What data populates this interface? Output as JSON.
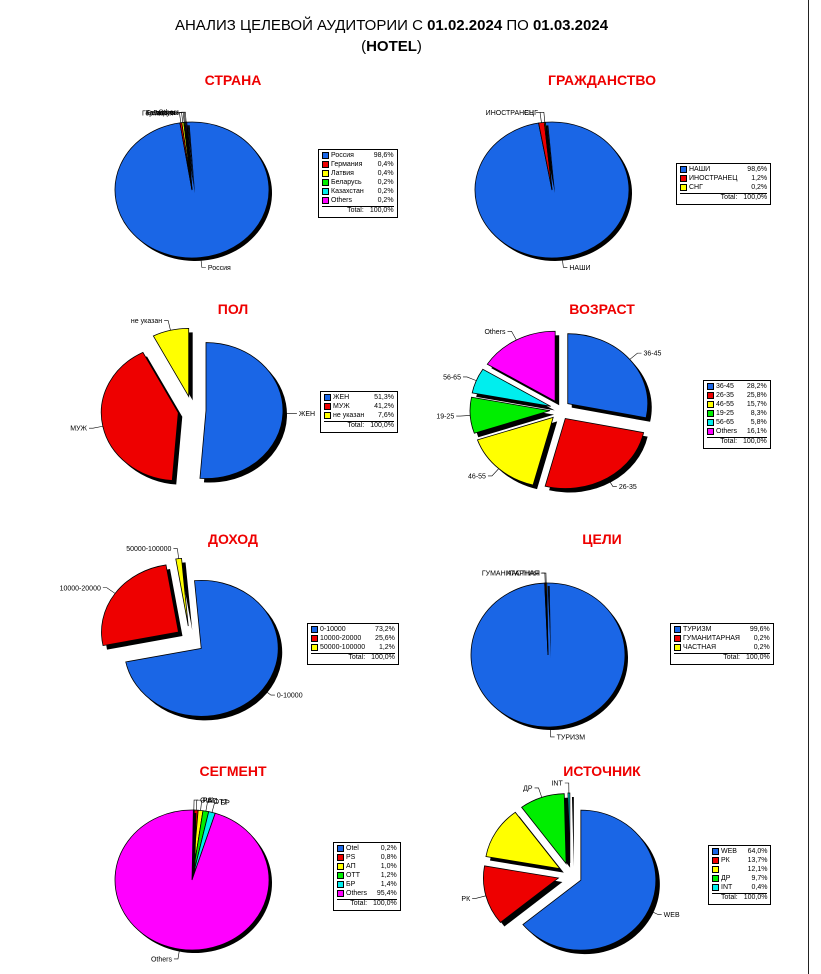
{
  "header": {
    "line1_prefix": "АНАЛИЗ ЦЕЛЕВОЙ АУДИТОРИИ С ",
    "date_from": "01.02.2024",
    "line1_mid": " ПО ",
    "date_to": "01.03.2024",
    "line2_open": "(",
    "line2_bold": "HOTEL",
    "line2_close": ")"
  },
  "total_label": "Total:",
  "chart_data": [
    {
      "type": "pie",
      "title": "СТРАНА",
      "labels": [
        "Россия",
        "Германия",
        "Латвия",
        "Беларусь",
        "Казахстан",
        "Others"
      ],
      "values": [
        98.6,
        0.4,
        0.4,
        0.2,
        0.2,
        0.2
      ],
      "value_text": [
        "98,6%",
        "0,4%",
        "0,4%",
        "0,2%",
        "0,2%",
        "0,2%"
      ],
      "colors": [
        "#1a66e6",
        "#ee0000",
        "#ffff00",
        "#00ee00",
        "#00eeee",
        "#ff00ff"
      ],
      "exploded": [
        false,
        false,
        false,
        false,
        false,
        false
      ],
      "total": "100,0%",
      "slice_labels": [
        "Россия",
        "Германия",
        "Латвия",
        "Беларусь",
        "Казахстан",
        "Others"
      ]
    },
    {
      "type": "pie",
      "title": "ГРАЖДАНСТВО",
      "labels": [
        "НАШИ",
        "ИНОСТРАНЕЦ",
        "СНГ"
      ],
      "values": [
        98.6,
        1.2,
        0.2
      ],
      "value_text": [
        "98,6%",
        "1,2%",
        "0,2%"
      ],
      "colors": [
        "#1a66e6",
        "#ee0000",
        "#ffff00"
      ],
      "exploded": [
        false,
        false,
        false
      ],
      "total": "100,0%",
      "slice_labels": [
        "НАШИ",
        "ИНОСТРАНЕЦ",
        "СНГ"
      ]
    },
    {
      "type": "pie",
      "title": "ПОЛ",
      "labels": [
        "ЖЕН",
        "МУЖ",
        "не указан"
      ],
      "values": [
        51.3,
        41.2,
        7.6
      ],
      "value_text": [
        "51,3%",
        "41,2%",
        "7,6%"
      ],
      "colors": [
        "#1a66e6",
        "#ee0000",
        "#ffff00"
      ],
      "exploded": [
        true,
        true,
        true
      ],
      "total": "100,0%",
      "slice_labels": [
        "ЖЕН",
        "МУЖ",
        "не указан"
      ]
    },
    {
      "type": "pie",
      "title": "ВОЗРАСТ",
      "labels": [
        "36-45",
        "26-35",
        "46-55",
        "19-25",
        "56-65",
        "Others"
      ],
      "values": [
        28.2,
        25.8,
        15.7,
        8.3,
        5.8,
        16.1
      ],
      "value_text": [
        "28,2%",
        "25,8%",
        "15,7%",
        "8,3%",
        "5,8%",
        "16,1%"
      ],
      "colors": [
        "#1a66e6",
        "#ee0000",
        "#ffff00",
        "#00ee00",
        "#00eeee",
        "#ff00ff"
      ],
      "exploded": [
        true,
        true,
        true,
        true,
        true,
        true
      ],
      "total": "100,0%",
      "slice_labels": [
        "36-45",
        "26-35",
        "46-55",
        "19-25",
        "56-65",
        "Others"
      ]
    },
    {
      "type": "pie",
      "title": "ДОХОД",
      "labels": [
        "0-10000",
        "10000-20000",
        "50000-100000"
      ],
      "values": [
        73.2,
        25.6,
        1.2
      ],
      "value_text": [
        "73,2%",
        "25,6%",
        "1,2%"
      ],
      "colors": [
        "#1a66e6",
        "#ee0000",
        "#ffff00"
      ],
      "exploded": [
        true,
        true,
        true
      ],
      "total": "100,0%",
      "slice_labels": [
        "0-10000",
        "10000-20000",
        "50000-100000"
      ]
    },
    {
      "type": "pie",
      "title": "ЦЕЛИ",
      "labels": [
        "ТУРИЗМ",
        "ГУМАНИТАРНАЯ",
        "ЧАСТНАЯ"
      ],
      "values": [
        99.6,
        0.2,
        0.2
      ],
      "value_text": [
        "99,6%",
        "0,2%",
        "0,2%"
      ],
      "colors": [
        "#1a66e6",
        "#ee0000",
        "#ffff00"
      ],
      "exploded": [
        false,
        false,
        false
      ],
      "total": "100,0%",
      "slice_labels": [
        "ТУРИЗМ",
        "ГУМАНИТАРНАЯ",
        "ЧАСТНАЯ"
      ]
    },
    {
      "type": "pie",
      "title": "СЕГМЕНТ",
      "labels": [
        "Otel",
        "PS",
        "AП",
        "OTT",
        "БР",
        "Others"
      ],
      "values": [
        0.2,
        0.8,
        1.0,
        1.2,
        1.4,
        95.4
      ],
      "value_text": [
        "0,2%",
        "0,8%",
        "1,0%",
        "1,2%",
        "1,4%",
        "95,4%"
      ],
      "colors": [
        "#1a66e6",
        "#ee0000",
        "#ffff00",
        "#00ee00",
        "#00eeee",
        "#ff00ff"
      ],
      "exploded": [
        false,
        false,
        false,
        false,
        false,
        false
      ],
      "total": "100,0%",
      "slice_labels": [
        "Otel",
        "PS",
        "AП",
        "OTT",
        "БР",
        "Others"
      ]
    },
    {
      "type": "pie",
      "title": "ИСТОЧНИК",
      "labels": [
        "WEB",
        "РК",
        "",
        "ДР",
        "INT"
      ],
      "values": [
        64.0,
        13.7,
        12.1,
        9.7,
        0.4
      ],
      "value_text": [
        "64,0%",
        "13,7%",
        "12,1%",
        "9,7%",
        "0,4%"
      ],
      "colors": [
        "#1a66e6",
        "#ee0000",
        "#ffff00",
        "#00ee00",
        "#00eeee"
      ],
      "exploded": [
        true,
        true,
        true,
        true,
        true
      ],
      "total": "100,0%",
      "slice_labels": [
        "WEB",
        "РК",
        "",
        "ДР",
        "INT"
      ]
    }
  ]
}
